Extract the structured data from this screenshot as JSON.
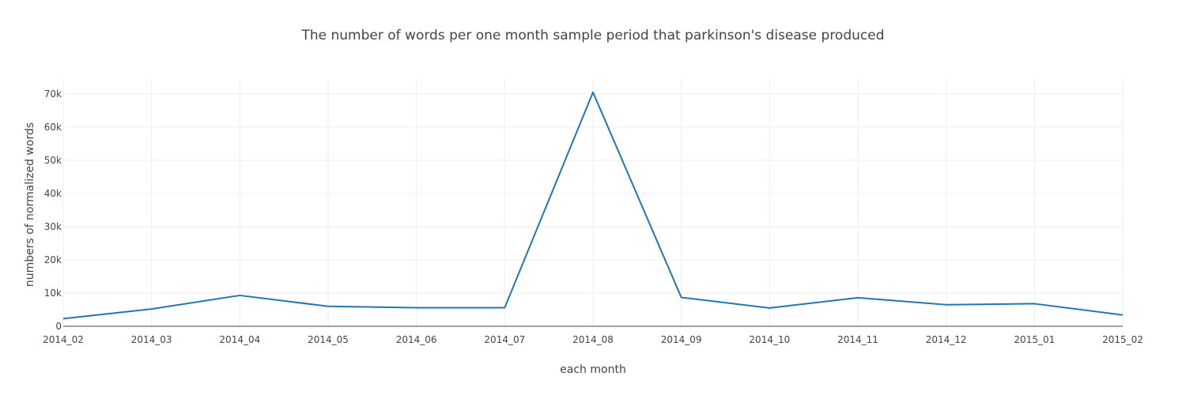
{
  "chart_data": {
    "type": "line",
    "title": "The number of words per one month sample period that parkinson's disease produced",
    "xlabel": "each month",
    "ylabel": "numbers of normalized words",
    "categories": [
      "2014_02",
      "2014_03",
      "2014_04",
      "2014_05",
      "2014_06",
      "2014_07",
      "2014_08",
      "2014_09",
      "2014_10",
      "2014_11",
      "2014_12",
      "2015_01",
      "2015_02"
    ],
    "y_ticks": [
      0,
      10000,
      20000,
      30000,
      40000,
      50000,
      60000,
      70000
    ],
    "y_tick_labels": [
      "0",
      "10k",
      "20k",
      "30k",
      "40k",
      "50k",
      "60k",
      "70k"
    ],
    "ylim": [
      0,
      74500
    ],
    "grid": true,
    "series": [
      {
        "values": [
          2300,
          5200,
          9300,
          6000,
          5600,
          5600,
          70500,
          8700,
          5500,
          8600,
          6500,
          6800,
          3400
        ],
        "color": "#1f77b4"
      }
    ]
  }
}
